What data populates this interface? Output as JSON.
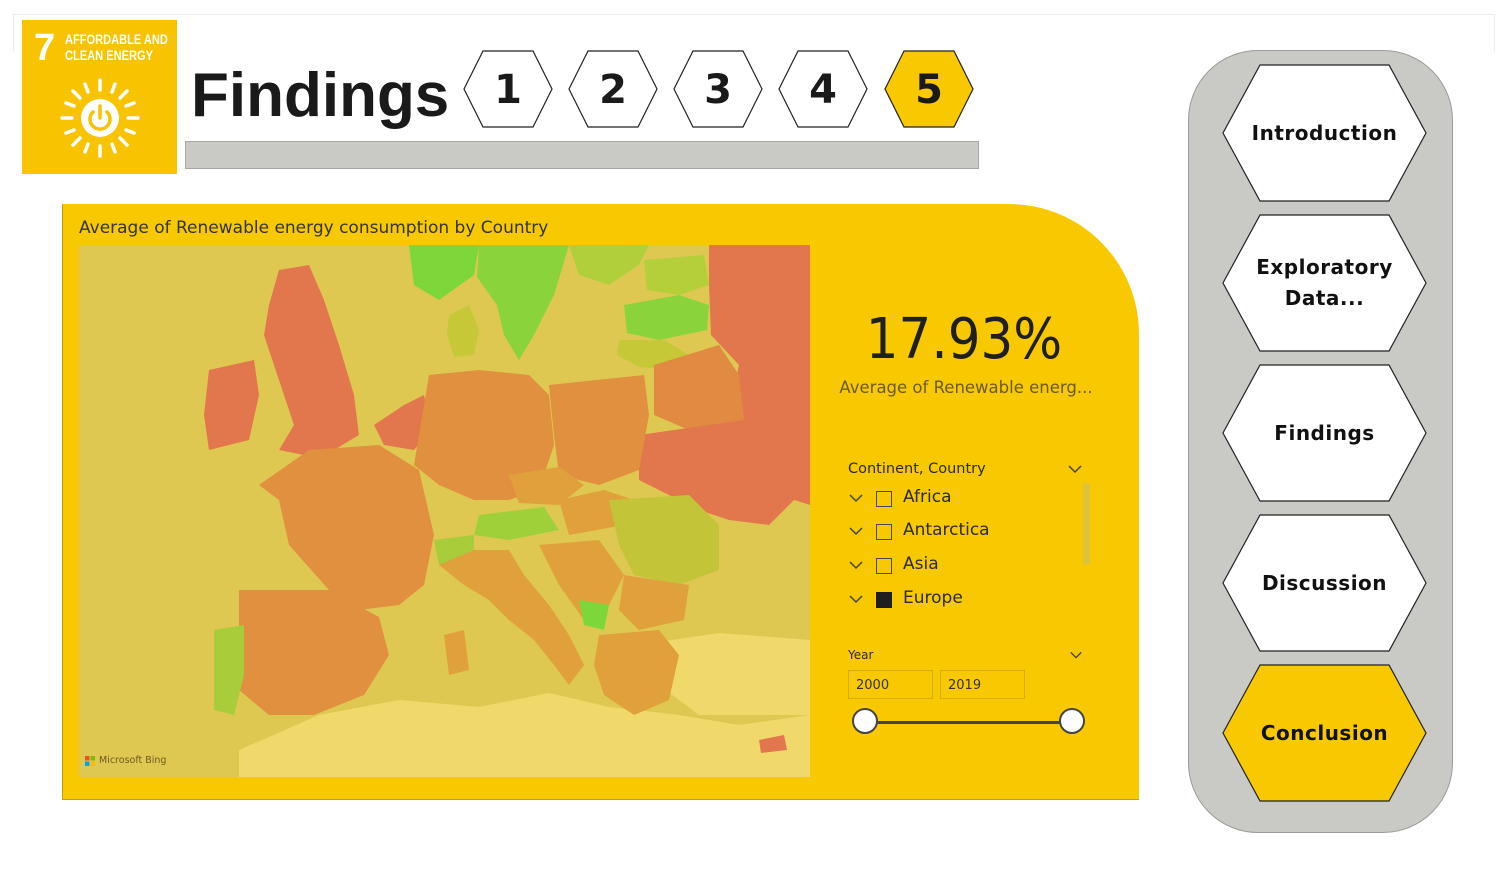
{
  "sdg": {
    "number": "7",
    "line1": "AFFORDABLE AND",
    "line2": "CLEAN ENERGY",
    "icon": "sun-power-icon",
    "color": "#f8c300"
  },
  "header": {
    "title": "Findings",
    "pages": [
      {
        "label": "1",
        "active": false
      },
      {
        "label": "2",
        "active": false
      },
      {
        "label": "3",
        "active": false
      },
      {
        "label": "4",
        "active": false
      },
      {
        "label": "5",
        "active": true
      }
    ]
  },
  "map": {
    "title": "Average of Renewable energy consumption by Country",
    "attribution": "Microsoft Bing"
  },
  "kpi": {
    "value": "17.93%",
    "label": "Average of Renewable energ..."
  },
  "slicer": {
    "title": "Continent, Country",
    "items": [
      {
        "label": "Africa",
        "checked": false
      },
      {
        "label": "Antarctica",
        "checked": false
      },
      {
        "label": "Asia",
        "checked": false
      },
      {
        "label": "Europe",
        "checked": true
      }
    ]
  },
  "year_slicer": {
    "title": "Year",
    "start": "2000",
    "end": "2019"
  },
  "nav": {
    "items": [
      {
        "label": "Introduction",
        "active": false
      },
      {
        "label": "Exploratory Data...",
        "active": false
      },
      {
        "label": "Findings",
        "active": false
      },
      {
        "label": "Discussion",
        "active": false
      },
      {
        "label": "Conclusion",
        "active": true
      }
    ]
  },
  "colors": {
    "accent": "#f8c900",
    "panel_gray": "#c9c9c5",
    "high_renewable": "#7dd63a",
    "low_renewable": "#e0704f"
  }
}
